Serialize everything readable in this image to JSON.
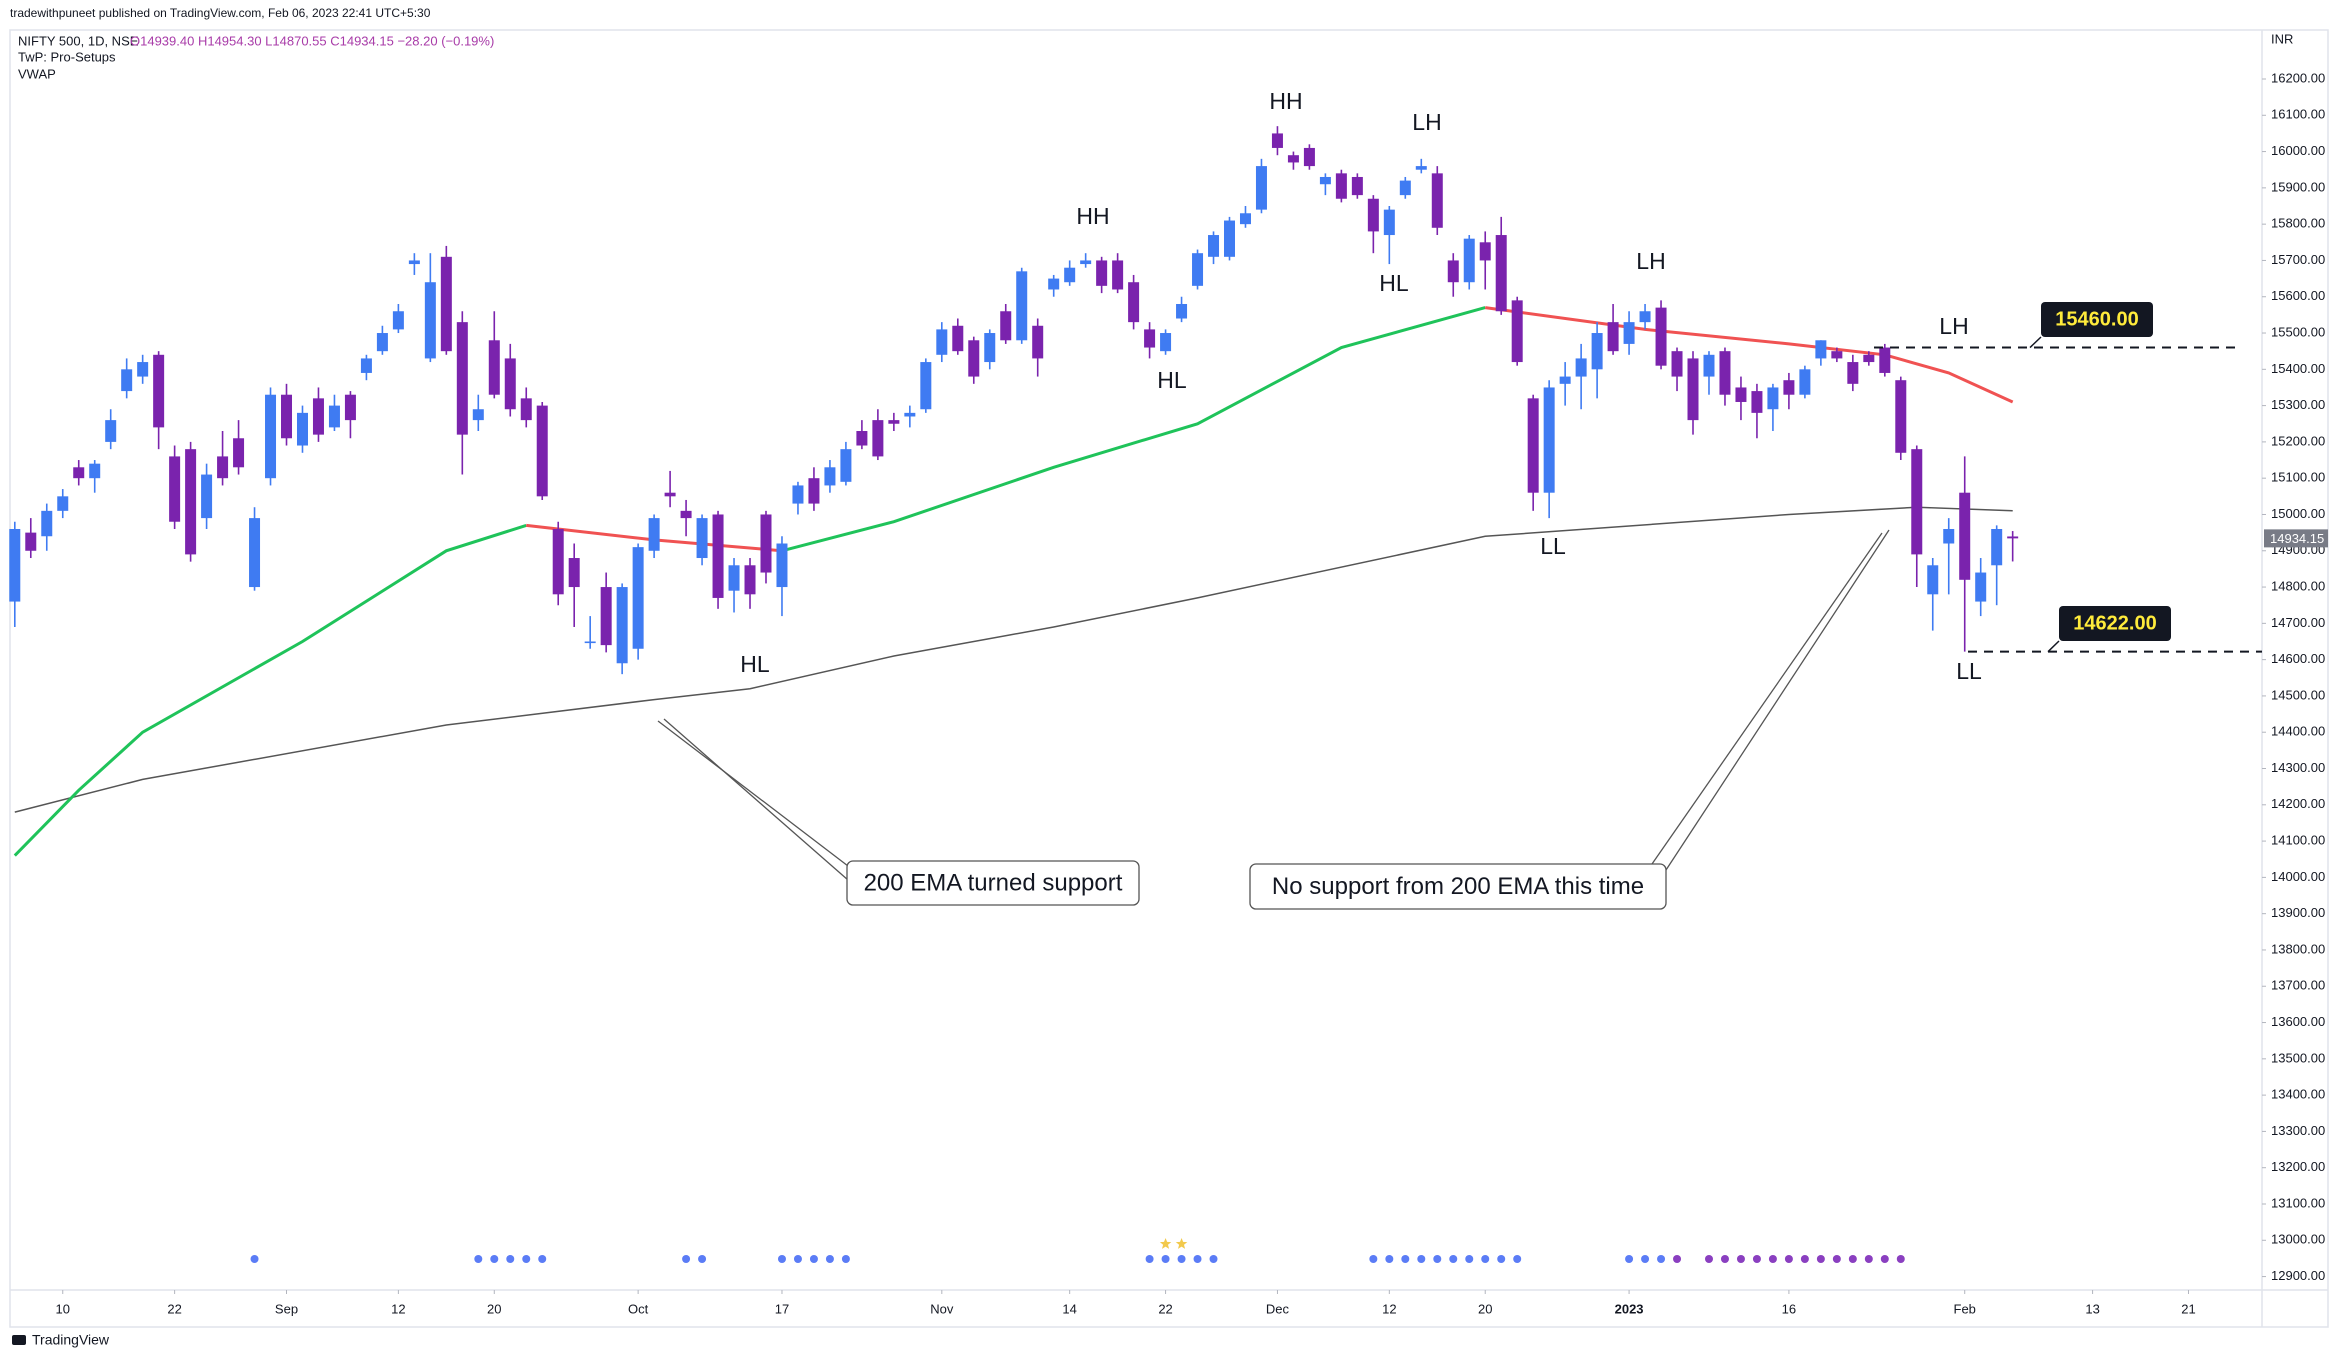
{
  "header": {
    "published": "tradewithpuneet published on TradingView.com, Feb 06, 2023 22:41 UTC+5:30"
  },
  "footer": {
    "brand": "TradingView"
  },
  "chart_data": {
    "type": "candlestick",
    "title": "NIFTY 500, 1D, NSE",
    "ohlc_legend": "O14939.40 H14954.30 L14870.55 C14934.15 −28.20 (−0.19%)",
    "indicators": [
      "TwP: Pro-Setups",
      "VWAP"
    ],
    "currency": "INR",
    "up_color": "#3f7bf2",
    "down_color": "#7a23ad",
    "candles": [
      [
        14760,
        14980,
        14690,
        14960
      ],
      [
        14950,
        14990,
        14880,
        14900
      ],
      [
        14940,
        15030,
        14900,
        15010
      ],
      [
        15010,
        15070,
        14990,
        15050
      ],
      [
        15130,
        15150,
        15080,
        15100
      ],
      [
        15100,
        15150,
        15060,
        15140
      ],
      [
        15200,
        15290,
        15180,
        15260
      ],
      [
        15340,
        15430,
        15320,
        15400
      ],
      [
        15380,
        15440,
        15360,
        15420
      ],
      [
        15440,
        15450,
        15180,
        15240
      ],
      [
        15160,
        15190,
        14960,
        14980
      ],
      [
        15180,
        15200,
        14870,
        14890
      ],
      [
        14990,
        15140,
        14960,
        15110
      ],
      [
        15160,
        15230,
        15080,
        15100
      ],
      [
        15210,
        15260,
        15110,
        15130
      ],
      [
        14800,
        15020,
        14790,
        14990
      ],
      [
        15100,
        15350,
        15080,
        15330
      ],
      [
        15330,
        15360,
        15190,
        15210
      ],
      [
        15190,
        15300,
        15170,
        15280
      ],
      [
        15320,
        15350,
        15200,
        15220
      ],
      [
        15240,
        15330,
        15230,
        15300
      ],
      [
        15330,
        15340,
        15210,
        15260
      ],
      [
        15390,
        15440,
        15370,
        15430
      ],
      [
        15450,
        15520,
        15440,
        15500
      ],
      [
        15510,
        15580,
        15500,
        15560
      ],
      [
        15690,
        15720,
        15660,
        15700
      ],
      [
        15430,
        15720,
        15420,
        15640
      ],
      [
        15710,
        15740,
        15440,
        15450
      ],
      [
        15530,
        15560,
        15110,
        15220
      ],
      [
        15260,
        15330,
        15230,
        15290
      ],
      [
        15480,
        15560,
        15320,
        15330
      ],
      [
        15430,
        15470,
        15270,
        15290
      ],
      [
        15320,
        15350,
        15240,
        15260
      ],
      [
        15300,
        15310,
        15040,
        15050
      ],
      [
        14960,
        14980,
        14750,
        14780
      ],
      [
        14880,
        14920,
        14690,
        14800
      ],
      [
        14650,
        14720,
        14630,
        14650
      ],
      [
        14800,
        14840,
        14620,
        14640
      ],
      [
        14590,
        14810,
        14560,
        14800
      ],
      [
        14630,
        14920,
        14600,
        14910
      ],
      [
        14900,
        15000,
        14880,
        14990
      ],
      [
        15060,
        15120,
        15020,
        15050
      ],
      [
        15010,
        15040,
        14940,
        14990
      ],
      [
        14880,
        15000,
        14860,
        14990
      ],
      [
        15000,
        15010,
        14740,
        14770
      ],
      [
        14790,
        14880,
        14730,
        14860
      ],
      [
        14860,
        14880,
        14740,
        14780
      ],
      [
        15000,
        15010,
        14810,
        14840
      ],
      [
        14800,
        14940,
        14720,
        14920
      ],
      [
        15030,
        15090,
        15000,
        15080
      ],
      [
        15100,
        15130,
        15010,
        15030
      ],
      [
        15080,
        15150,
        15060,
        15130
      ],
      [
        15090,
        15200,
        15080,
        15180
      ],
      [
        15230,
        15260,
        15180,
        15190
      ],
      [
        15260,
        15290,
        15150,
        15160
      ],
      [
        15260,
        15280,
        15230,
        15250
      ],
      [
        15270,
        15300,
        15240,
        15280
      ],
      [
        15290,
        15430,
        15280,
        15420
      ],
      [
        15440,
        15530,
        15420,
        15510
      ],
      [
        15520,
        15540,
        15440,
        15450
      ],
      [
        15480,
        15490,
        15360,
        15380
      ],
      [
        15420,
        15510,
        15400,
        15500
      ],
      [
        15560,
        15580,
        15470,
        15480
      ],
      [
        15480,
        15680,
        15470,
        15670
      ],
      [
        15520,
        15540,
        15380,
        15430
      ],
      [
        15620,
        15660,
        15600,
        15650
      ],
      [
        15640,
        15700,
        15630,
        15680
      ],
      [
        15690,
        15720,
        15680,
        15700
      ],
      [
        15700,
        15710,
        15610,
        15630
      ],
      [
        15700,
        15720,
        15610,
        15620
      ],
      [
        15640,
        15660,
        15510,
        15530
      ],
      [
        15510,
        15530,
        15430,
        15460
      ],
      [
        15450,
        15510,
        15440,
        15500
      ],
      [
        15540,
        15600,
        15530,
        15580
      ],
      [
        15630,
        15730,
        15620,
        15720
      ],
      [
        15710,
        15780,
        15690,
        15770
      ],
      [
        15710,
        15820,
        15700,
        15810
      ],
      [
        15800,
        15850,
        15790,
        15830
      ],
      [
        15840,
        15980,
        15830,
        15960
      ],
      [
        16050,
        16070,
        15990,
        16010
      ],
      [
        15990,
        16000,
        15950,
        15970
      ],
      [
        16010,
        16020,
        15950,
        15960
      ],
      [
        15910,
        15940,
        15880,
        15930
      ],
      [
        15940,
        15950,
        15860,
        15870
      ],
      [
        15930,
        15940,
        15870,
        15880
      ],
      [
        15870,
        15880,
        15720,
        15780
      ],
      [
        15770,
        15850,
        15690,
        15840
      ],
      [
        15880,
        15930,
        15870,
        15920
      ],
      [
        15950,
        15980,
        15940,
        15960
      ],
      [
        15940,
        15960,
        15770,
        15790
      ],
      [
        15700,
        15720,
        15600,
        15640
      ],
      [
        15640,
        15770,
        15620,
        15760
      ],
      [
        15750,
        15780,
        15620,
        15700
      ],
      [
        15770,
        15820,
        15550,
        15560
      ],
      [
        15590,
        15600,
        15410,
        15420
      ],
      [
        15320,
        15330,
        15010,
        15060
      ],
      [
        15060,
        15370,
        14990,
        15350
      ],
      [
        15360,
        15420,
        15300,
        15380
      ],
      [
        15380,
        15470,
        15290,
        15430
      ],
      [
        15400,
        15530,
        15320,
        15500
      ],
      [
        15530,
        15580,
        15440,
        15450
      ],
      [
        15470,
        15560,
        15440,
        15530
      ],
      [
        15530,
        15580,
        15510,
        15560
      ],
      [
        15570,
        15590,
        15400,
        15410
      ],
      [
        15450,
        15460,
        15340,
        15380
      ],
      [
        15430,
        15450,
        15220,
        15260
      ],
      [
        15380,
        15450,
        15330,
        15440
      ],
      [
        15450,
        15460,
        15300,
        15330
      ],
      [
        15350,
        15380,
        15260,
        15310
      ],
      [
        15340,
        15360,
        15210,
        15280
      ],
      [
        15290,
        15360,
        15230,
        15350
      ],
      [
        15370,
        15390,
        15290,
        15330
      ],
      [
        15330,
        15410,
        15320,
        15400
      ],
      [
        15430,
        15480,
        15410,
        15480
      ],
      [
        15450,
        15460,
        15420,
        15430
      ],
      [
        15420,
        15440,
        15340,
        15360
      ],
      [
        15440,
        15450,
        15410,
        15420
      ],
      [
        15460,
        15470,
        15380,
        15390
      ],
      [
        15370,
        15380,
        15150,
        15170
      ],
      [
        15180,
        15190,
        14800,
        14890
      ],
      [
        14780,
        14880,
        14680,
        14860
      ],
      [
        14920,
        14990,
        14780,
        14960
      ],
      [
        15060,
        15160,
        14622,
        14820
      ],
      [
        14760,
        14880,
        14720,
        14840
      ],
      [
        14860,
        14970,
        14750,
        14960
      ],
      [
        14939.4,
        14954.3,
        14870.55,
        14934.15
      ]
    ],
    "series": [
      {
        "color": "#555555",
        "x": [
          0,
          8,
          27,
          40,
          46,
          55,
          65,
          74,
          92,
          111,
          119,
          125
        ],
        "values": [
          14180,
          14270,
          14420,
          14490,
          14520,
          14610,
          14690,
          14770,
          14940,
          15000,
          15020,
          15010
        ]
      },
      {
        "color": "#1fc35a",
        "x": [
          0,
          4,
          8,
          18,
          27,
          32,
          40,
          48,
          55,
          65,
          74,
          83,
          92
        ],
        "values": [
          14060,
          14240,
          14400,
          14650,
          14900,
          14970,
          null,
          14900,
          14980,
          15130,
          15250,
          15460,
          15570
        ]
      },
      {
        "color": "#f05252",
        "x": [
          32,
          40,
          48,
          70,
          92,
          102,
          111,
          117,
          121,
          125
        ],
        "values": [
          14970,
          14930,
          14900,
          null,
          15570,
          15510,
          15470,
          15440,
          15390,
          15310
        ]
      }
    ],
    "xlim": [
      -0.3,
      140.6
    ],
    "xticks": [
      {
        "value": 3,
        "label": "10"
      },
      {
        "value": 10,
        "label": "22"
      },
      {
        "value": 17,
        "label": "Sep"
      },
      {
        "value": 24,
        "label": "12"
      },
      {
        "value": 30,
        "label": "20"
      },
      {
        "value": 39,
        "label": "Oct"
      },
      {
        "value": 48,
        "label": "17"
      },
      {
        "value": 58,
        "label": "Nov"
      },
      {
        "value": 66,
        "label": "14"
      },
      {
        "value": 72,
        "label": "22"
      },
      {
        "value": 79,
        "label": "Dec"
      },
      {
        "value": 86,
        "label": "12"
      },
      {
        "value": 92,
        "label": "20"
      },
      {
        "value": 101,
        "label": "2023"
      },
      {
        "value": 111,
        "label": "16"
      },
      {
        "value": 122,
        "label": "Feb"
      },
      {
        "value": 130,
        "label": "13"
      },
      {
        "value": 136,
        "label": "21"
      }
    ],
    "ylim": [
      12863,
      16335
    ],
    "yticks": [
      {
        "value": 12900,
        "label": "12900.00"
      },
      {
        "value": 13000,
        "label": "13000.00"
      },
      {
        "value": 13100,
        "label": "13100.00"
      },
      {
        "value": 13200,
        "label": "13200.00"
      },
      {
        "value": 13300,
        "label": "13300.00"
      },
      {
        "value": 13400,
        "label": "13400.00"
      },
      {
        "value": 13500,
        "label": "13500.00"
      },
      {
        "value": 13600,
        "label": "13600.00"
      },
      {
        "value": 13700,
        "label": "13700.00"
      },
      {
        "value": 13800,
        "label": "13800.00"
      },
      {
        "value": 13900,
        "label": "13900.00"
      },
      {
        "value": 14000,
        "label": "14000.00"
      },
      {
        "value": 14100,
        "label": "14100.00"
      },
      {
        "value": 14200,
        "label": "14200.00"
      },
      {
        "value": 14300,
        "label": "14300.00"
      },
      {
        "value": 14400,
        "label": "14400.00"
      },
      {
        "value": 14500,
        "label": "14500.00"
      },
      {
        "value": 14600,
        "label": "14600.00"
      },
      {
        "value": 14700,
        "label": "14700.00"
      },
      {
        "value": 14800,
        "label": "14800.00"
      },
      {
        "value": 14900,
        "label": "14900.00"
      },
      {
        "value": 15000,
        "label": "15000.00"
      },
      {
        "value": 15100,
        "label": "15100.00"
      },
      {
        "value": 15200,
        "label": "15200.00"
      },
      {
        "value": 15300,
        "label": "15300.00"
      },
      {
        "value": 15400,
        "label": "15400.00"
      },
      {
        "value": 15500,
        "label": "15500.00"
      },
      {
        "value": 15600,
        "label": "15600.00"
      },
      {
        "value": 15700,
        "label": "15700.00"
      },
      {
        "value": 15800,
        "label": "15800.00"
      },
      {
        "value": 15900,
        "label": "15900.00"
      },
      {
        "value": 16000,
        "label": "16000.00"
      },
      {
        "value": 16100,
        "label": "16100.00"
      },
      {
        "value": 16200,
        "label": "16200.00"
      }
    ],
    "grid": false,
    "last_price": {
      "value": 14934.15,
      "label": "14934.15"
    },
    "levels": [
      {
        "value": 15460,
        "label": "15460.00"
      },
      {
        "value": 14622,
        "label": "14622.00"
      }
    ],
    "annotations": [
      "HH",
      "LH",
      "HH",
      "LH",
      "HL",
      "LH",
      "HL",
      "LL",
      "HL",
      "LL"
    ],
    "callouts": [
      "200 EMA turned support",
      "No support from 200 EMA this time"
    ],
    "signals": {
      "blue_color": "#5b7cf6",
      "purple_color": "#8a3fc0",
      "star_color": "#f2c94c",
      "blue": [
        15,
        29,
        30,
        31,
        32,
        33,
        42,
        43,
        48,
        49,
        50,
        51,
        52,
        71,
        72,
        73,
        74,
        75,
        85,
        86,
        87,
        88,
        89,
        90,
        91,
        92,
        93,
        94,
        101,
        102,
        103
      ],
      "purple": [
        104,
        106,
        107,
        108,
        109,
        110,
        111,
        112,
        113,
        114,
        115,
        116,
        117,
        118
      ],
      "stars": [
        72,
        73
      ]
    }
  }
}
